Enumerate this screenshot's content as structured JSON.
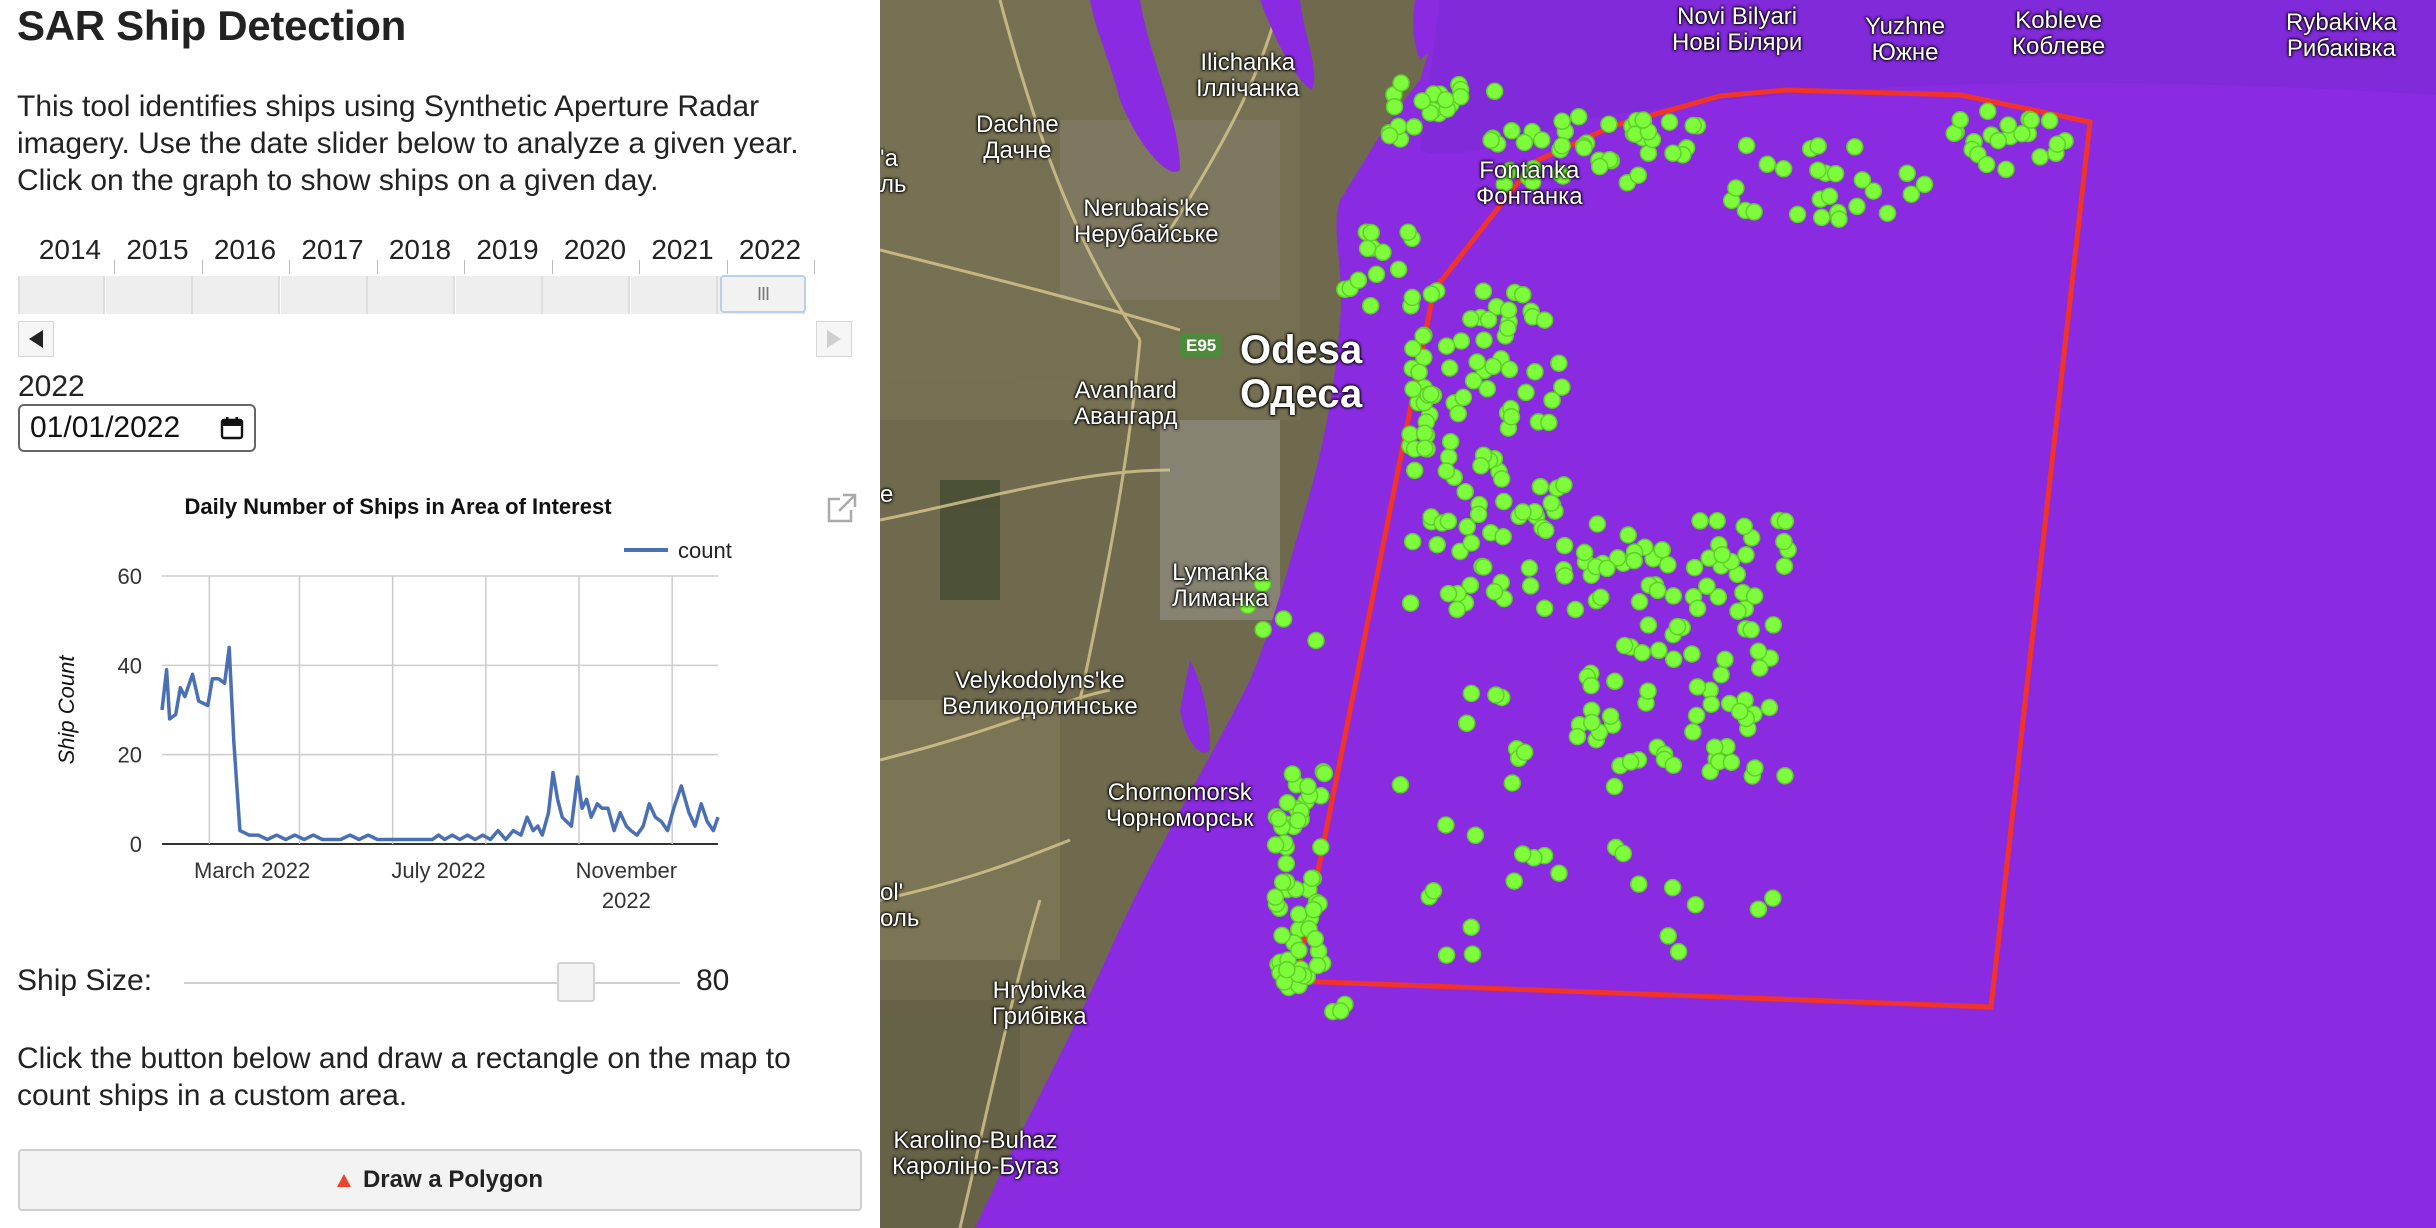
{
  "app": {
    "title": "SAR Ship Detection",
    "description": "This tool identifies ships using Synthetic Aperture Radar imagery. Use the date slider below to analyze a given year. Click on the graph to show ships on a given day."
  },
  "year_slider": {
    "years": [
      "2014",
      "2015",
      "2016",
      "2017",
      "2018",
      "2019",
      "2020",
      "2021",
      "2022"
    ],
    "selected": "2022",
    "handle_glyph": "III"
  },
  "date_picker": {
    "year_label": "2022",
    "value": "01/01/2022"
  },
  "chart_data": {
    "type": "line",
    "title": "Daily Number of Ships in Area of Interest",
    "xlabel": "",
    "ylabel": "Ship Count",
    "ylim": [
      0,
      60
    ],
    "yticks": [
      0,
      20,
      40,
      60
    ],
    "xlim": [
      "2022-01-01",
      "2022-12-31"
    ],
    "xticks": [
      {
        "date": "2022-03-01",
        "label": [
          "March 2022"
        ]
      },
      {
        "date": "2022-07-01",
        "label": [
          "July 2022"
        ]
      },
      {
        "date": "2022-11-01",
        "label": [
          "November",
          "2022"
        ]
      }
    ],
    "grid": true,
    "legend": "top-right",
    "series": [
      {
        "name": "count",
        "color": "#4a6fb5",
        "points": [
          [
            "2022-01-01",
            30
          ],
          [
            "2022-01-04",
            39
          ],
          [
            "2022-01-06",
            28
          ],
          [
            "2022-01-10",
            29
          ],
          [
            "2022-01-13",
            35
          ],
          [
            "2022-01-16",
            33
          ],
          [
            "2022-01-21",
            38
          ],
          [
            "2022-01-25",
            32
          ],
          [
            "2022-01-31",
            31
          ],
          [
            "2022-02-03",
            37
          ],
          [
            "2022-02-07",
            37
          ],
          [
            "2022-02-11",
            36
          ],
          [
            "2022-02-14",
            44
          ],
          [
            "2022-02-17",
            23
          ],
          [
            "2022-02-21",
            3
          ],
          [
            "2022-02-27",
            2
          ],
          [
            "2022-03-05",
            2
          ],
          [
            "2022-03-11",
            1
          ],
          [
            "2022-03-17",
            2
          ],
          [
            "2022-03-23",
            1
          ],
          [
            "2022-03-29",
            2
          ],
          [
            "2022-04-04",
            1
          ],
          [
            "2022-04-10",
            2
          ],
          [
            "2022-04-16",
            1
          ],
          [
            "2022-04-22",
            1
          ],
          [
            "2022-04-28",
            1
          ],
          [
            "2022-05-04",
            2
          ],
          [
            "2022-05-10",
            1
          ],
          [
            "2022-05-16",
            2
          ],
          [
            "2022-05-22",
            1
          ],
          [
            "2022-05-28",
            1
          ],
          [
            "2022-06-03",
            1
          ],
          [
            "2022-06-09",
            1
          ],
          [
            "2022-06-15",
            1
          ],
          [
            "2022-06-21",
            1
          ],
          [
            "2022-06-27",
            1
          ],
          [
            "2022-07-01",
            2
          ],
          [
            "2022-07-05",
            1
          ],
          [
            "2022-07-10",
            2
          ],
          [
            "2022-07-15",
            1
          ],
          [
            "2022-07-20",
            2
          ],
          [
            "2022-07-25",
            1
          ],
          [
            "2022-07-30",
            2
          ],
          [
            "2022-08-04",
            1
          ],
          [
            "2022-08-09",
            3
          ],
          [
            "2022-08-14",
            1
          ],
          [
            "2022-08-19",
            3
          ],
          [
            "2022-08-24",
            2
          ],
          [
            "2022-08-28",
            6
          ],
          [
            "2022-09-01",
            3
          ],
          [
            "2022-09-04",
            4
          ],
          [
            "2022-09-07",
            2
          ],
          [
            "2022-09-11",
            7
          ],
          [
            "2022-09-14",
            16
          ],
          [
            "2022-09-17",
            10
          ],
          [
            "2022-09-20",
            6
          ],
          [
            "2022-09-23",
            5
          ],
          [
            "2022-09-26",
            4
          ],
          [
            "2022-09-30",
            15
          ],
          [
            "2022-10-03",
            8
          ],
          [
            "2022-10-06",
            10
          ],
          [
            "2022-10-09",
            6
          ],
          [
            "2022-10-13",
            9
          ],
          [
            "2022-10-16",
            8
          ],
          [
            "2022-10-20",
            8
          ],
          [
            "2022-10-24",
            3
          ],
          [
            "2022-10-28",
            7
          ],
          [
            "2022-11-01",
            4
          ],
          [
            "2022-11-04",
            3
          ],
          [
            "2022-11-08",
            2
          ],
          [
            "2022-11-12",
            4
          ],
          [
            "2022-11-16",
            9
          ],
          [
            "2022-11-20",
            6
          ],
          [
            "2022-11-24",
            5
          ],
          [
            "2022-11-28",
            3
          ],
          [
            "2022-12-02",
            8
          ],
          [
            "2022-12-07",
            13
          ],
          [
            "2022-12-12",
            7
          ],
          [
            "2022-12-16",
            4
          ],
          [
            "2022-12-20",
            9
          ],
          [
            "2022-12-24",
            5
          ],
          [
            "2022-12-28",
            3
          ],
          [
            "2022-12-31",
            6
          ]
        ]
      }
    ]
  },
  "ship_size": {
    "label": "Ship Size:",
    "value": "80",
    "fraction": 0.79
  },
  "instructions": "Click the button below and draw a rectangle on the map to count ships in a custom area.",
  "draw_button": {
    "label": "Draw a Polygon",
    "icon": "polygon-triangle-icon"
  },
  "map": {
    "colors": {
      "water_overlay": "#8a2be2",
      "ship": "#7cfc3a",
      "aoi_outline": "#ff2a2a",
      "land": "#6b6b4c"
    },
    "labels": [
      {
        "id": "novi-bilyari",
        "text": "Novi Bilyari\nНові Біляри"
      },
      {
        "id": "yuzhne",
        "text": "Yuzhne\nЮжне"
      },
      {
        "id": "kobleve",
        "text": "Kobleve\nКоблеве"
      },
      {
        "id": "rybakivka",
        "text": "Rybakivka\nРибаківка"
      },
      {
        "id": "ilichanka",
        "text": "Ilichanka\nІллічанка"
      },
      {
        "id": "dachne",
        "text": "Dachne\nДачне"
      },
      {
        "id": "fontanka",
        "text": "Fontanka\nФонтанка"
      },
      {
        "id": "nerubaiske",
        "text": "Nerubais'ke\nНерубайське"
      },
      {
        "id": "odesa",
        "text": "Odesa\nОдеса"
      },
      {
        "id": "avanhard",
        "text": "Avanhard\nАвангард"
      },
      {
        "id": "lymanka",
        "text": "Lymanka\nЛиманка"
      },
      {
        "id": "velykodolynske",
        "text": "Velykodolyns'ke\nВеликодолинське"
      },
      {
        "id": "chornomorsk",
        "text": "Chornomorsk\nЧорноморськ"
      },
      {
        "id": "hrybivka",
        "text": "Hrybivka\nГрибівка"
      },
      {
        "id": "karolino-buhaz",
        "text": "Karolino-Buhaz\nКаролiно-Бугаз"
      },
      {
        "id": "edge-a",
        "text": "'a\nль"
      },
      {
        "id": "edge-e",
        "text": "e"
      },
      {
        "id": "edge-ol",
        "text": "ol'\nоль"
      }
    ],
    "road_badge": "E95"
  }
}
